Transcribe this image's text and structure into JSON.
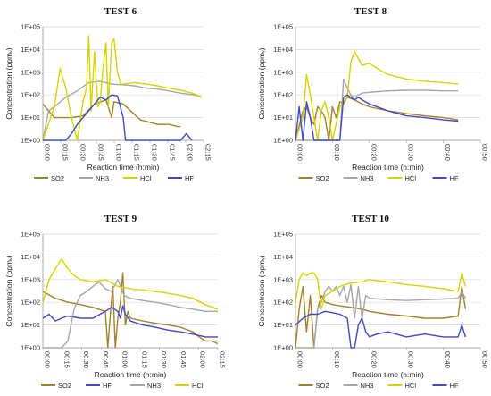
{
  "chart_data": [
    {
      "type": "line",
      "title": "TEST 6",
      "xlabel": "Reaction time (h:min)",
      "ylabel": "Concentration (ppmᵥ)",
      "y_scale": "log",
      "ylim": [
        1,
        100000
      ],
      "y_ticks": [
        "1E+00",
        "1E+01",
        "1E+02",
        "1E+03",
        "1E+04",
        "1E+05"
      ],
      "xlim_min": [
        0,
        140
      ],
      "x_ticks": [
        "00:00",
        "00:15",
        "00:30",
        "00:45",
        "01:00",
        "01:15",
        "01:30",
        "01:45",
        "02:00",
        "02:15"
      ],
      "legend": "bottom",
      "series": [
        {
          "name": "SO2",
          "color": "#a0822a",
          "x": [
            0,
            5,
            10,
            15,
            25,
            35,
            45,
            55,
            60,
            62,
            70,
            85,
            100,
            110,
            118,
            120
          ],
          "y": [
            40,
            20,
            10,
            10,
            10,
            12,
            40,
            60,
            10,
            50,
            40,
            8,
            5,
            5,
            4,
            4
          ]
        },
        {
          "name": "NH3",
          "color": "#a6a6a6",
          "x": [
            0,
            5,
            10,
            20,
            30,
            40,
            50,
            60,
            70,
            80,
            90,
            100,
            110,
            120,
            132,
            138
          ],
          "y": [
            1,
            20,
            30,
            80,
            150,
            350,
            400,
            300,
            280,
            250,
            200,
            180,
            150,
            120,
            100,
            80
          ]
        },
        {
          "name": "HCl",
          "color": "#d4d400",
          "x": [
            0,
            10,
            15,
            20,
            25,
            30,
            35,
            38,
            40,
            42,
            45,
            48,
            50,
            52,
            55,
            57,
            60,
            62,
            65,
            68,
            70,
            80,
            90,
            100,
            110,
            120,
            130,
            138
          ],
          "y": [
            1,
            30,
            1500,
            200,
            10,
            1,
            50,
            200,
            40000,
            20,
            8000,
            30,
            50,
            1000,
            20000,
            30,
            20000,
            30000,
            1000,
            300,
            300,
            350,
            300,
            250,
            200,
            160,
            120,
            80
          ]
        },
        {
          "name": "HF",
          "color": "#3f48cc",
          "x": [
            0,
            20,
            25,
            30,
            35,
            40,
            45,
            50,
            55,
            60,
            65,
            70,
            72,
            75,
            80,
            85,
            90,
            100,
            110,
            120,
            125,
            130
          ],
          "y": [
            1,
            1,
            2,
            5,
            10,
            20,
            40,
            80,
            60,
            100,
            90,
            10,
            1,
            1,
            1,
            1,
            1,
            1,
            1,
            1,
            2,
            1
          ]
        }
      ]
    },
    {
      "type": "line",
      "title": "TEST 8",
      "xlabel": "Reaction time (h:min)",
      "ylabel": "Concentration (ppmᵥ)",
      "y_scale": "log",
      "ylim": [
        1,
        100000
      ],
      "y_ticks": [
        "1E+00",
        "1E+01",
        "1E+02",
        "1E+03",
        "1E+04",
        "1E+05"
      ],
      "xlim_min": [
        0,
        50
      ],
      "x_ticks": [
        "00:00",
        "00:10",
        "00:20",
        "00:30",
        "00:40",
        "00:50"
      ],
      "legend": "bottom",
      "series": [
        {
          "name": "SO2",
          "color": "#a0822a",
          "x": [
            0,
            2,
            3,
            4,
            5,
            6,
            7,
            8,
            9,
            10,
            11,
            12,
            13,
            14,
            16,
            18,
            20,
            25,
            30,
            35,
            40,
            44
          ],
          "y": [
            1,
            20,
            30,
            10,
            5,
            30,
            20,
            10,
            1,
            30,
            10,
            50,
            40,
            80,
            60,
            40,
            30,
            20,
            15,
            12,
            10,
            8
          ]
        },
        {
          "name": "NH3",
          "color": "#a6a6a6",
          "x": [
            0,
            12,
            13,
            14,
            15,
            16,
            17,
            18,
            20,
            25,
            30,
            35,
            40,
            44
          ],
          "y": [
            1,
            1,
            500,
            200,
            100,
            80,
            100,
            120,
            130,
            150,
            160,
            160,
            150,
            150
          ]
        },
        {
          "name": "HCl",
          "color": "#d4d400",
          "x": [
            0,
            2,
            3,
            4,
            5,
            6,
            7,
            8,
            9,
            10,
            12,
            14,
            15,
            16,
            17,
            18,
            20,
            22,
            25,
            30,
            35,
            40,
            44
          ],
          "y": [
            1,
            10,
            800,
            100,
            10,
            1,
            20,
            50,
            10,
            1,
            30,
            80,
            3000,
            8000,
            4000,
            2000,
            2500,
            1500,
            800,
            500,
            400,
            350,
            300
          ]
        },
        {
          "name": "HF",
          "color": "#3f48cc",
          "x": [
            0,
            1,
            2,
            3,
            4,
            5,
            6,
            8,
            10,
            12,
            13,
            14,
            15,
            16,
            17,
            18,
            20,
            25,
            30,
            35,
            40,
            44
          ],
          "y": [
            1,
            30,
            1,
            50,
            10,
            1,
            1,
            1,
            1,
            1,
            80,
            100,
            80,
            60,
            80,
            60,
            40,
            20,
            12,
            10,
            8,
            7
          ]
        }
      ]
    },
    {
      "type": "line",
      "title": "TEST 9",
      "xlabel": "Reaction time (h:min)",
      "ylabel": "Concentration (ppmᵥ)",
      "y_scale": "log",
      "ylim": [
        1,
        100000
      ],
      "y_ticks": [
        "1E+00",
        "1E+01",
        "1E+02",
        "1E+03",
        "1E+04",
        "1E+05"
      ],
      "xlim_min": [
        0,
        140
      ],
      "x_ticks": [
        "00:00",
        "00:15",
        "00:30",
        "00:45",
        "01:00",
        "01:15",
        "01:30",
        "01:45",
        "02:00",
        "02:15"
      ],
      "legend": "bottom",
      "series": [
        {
          "name": "SO2",
          "color": "#a0822a",
          "x": [
            0,
            10,
            20,
            30,
            40,
            50,
            52,
            54,
            56,
            58,
            60,
            62,
            64,
            66,
            68,
            70,
            80,
            90,
            100,
            110,
            120,
            125,
            130,
            135,
            140
          ],
          "y": [
            300,
            150,
            100,
            80,
            60,
            40,
            1,
            30,
            500,
            1,
            20,
            100,
            2000,
            10,
            40,
            20,
            15,
            12,
            10,
            8,
            5,
            3,
            2,
            2,
            1.5
          ]
        },
        {
          "name": "HF",
          "color": "#3f48cc",
          "x": [
            0,
            5,
            10,
            15,
            20,
            30,
            40,
            50,
            55,
            60,
            62,
            64,
            66,
            70,
            80,
            90,
            100,
            110,
            120,
            130,
            140
          ],
          "y": [
            20,
            30,
            15,
            20,
            25,
            20,
            20,
            40,
            60,
            40,
            20,
            70,
            30,
            15,
            10,
            8,
            6,
            5,
            4,
            3,
            3
          ]
        },
        {
          "name": "NH3",
          "color": "#a6a6a6",
          "x": [
            0,
            15,
            20,
            25,
            30,
            35,
            40,
            45,
            50,
            55,
            60,
            65,
            70,
            80,
            90,
            100,
            110,
            120,
            130,
            140
          ],
          "y": [
            1,
            1,
            2,
            50,
            200,
            300,
            500,
            800,
            400,
            300,
            1000,
            200,
            150,
            120,
            100,
            80,
            60,
            50,
            40,
            40
          ]
        },
        {
          "name": "HCl",
          "color": "#d4d400",
          "x": [
            0,
            5,
            10,
            15,
            20,
            25,
            30,
            40,
            50,
            60,
            70,
            80,
            90,
            100,
            110,
            120,
            130,
            140
          ],
          "y": [
            100,
            1000,
            3000,
            8000,
            3000,
            1500,
            1000,
            800,
            1000,
            500,
            400,
            350,
            300,
            250,
            200,
            150,
            80,
            50
          ]
        }
      ]
    },
    {
      "type": "line",
      "title": "TEST 10",
      "xlabel": "Reaction time (h:min)",
      "ylabel": "Concentration (ppmᵥ)",
      "y_scale": "log",
      "ylim": [
        1,
        100000
      ],
      "y_ticks": [
        "1E+00",
        "1E+01",
        "1E+02",
        "1E+03",
        "1E+04",
        "1E+05"
      ],
      "xlim_min": [
        0,
        50
      ],
      "x_ticks": [
        "00:00",
        "00:10",
        "00:20",
        "00:30",
        "00:40",
        "00:50"
      ],
      "legend": "bottom",
      "series": [
        {
          "name": "SO2",
          "color": "#a0822a",
          "x": [
            0,
            1,
            2,
            3,
            4,
            5,
            6,
            7,
            8,
            10,
            12,
            15,
            18,
            20,
            25,
            30,
            35,
            40,
            44,
            45,
            46
          ],
          "y": [
            1,
            50,
            500,
            5,
            200,
            1,
            50,
            200,
            100,
            80,
            70,
            60,
            50,
            40,
            30,
            25,
            20,
            20,
            25,
            500,
            50
          ]
        },
        {
          "name": "NH3",
          "color": "#a6a6a6",
          "x": [
            0,
            5,
            6,
            7,
            8,
            9,
            10,
            11,
            12,
            13,
            14,
            15,
            16,
            17,
            18,
            19,
            20,
            25,
            30,
            35,
            40,
            44,
            45,
            46
          ],
          "y": [
            1,
            1,
            50,
            100,
            300,
            500,
            300,
            500,
            200,
            500,
            100,
            600,
            20,
            500,
            20,
            200,
            150,
            130,
            120,
            130,
            140,
            150,
            300,
            150
          ]
        },
        {
          "name": "HCl",
          "color": "#d4d400",
          "x": [
            0,
            1,
            2,
            3,
            4,
            5,
            6,
            7,
            8,
            10,
            12,
            15,
            18,
            20,
            22,
            25,
            30,
            35,
            40,
            44,
            45,
            46
          ],
          "y": [
            100,
            1000,
            2000,
            1500,
            2000,
            2000,
            1000,
            50,
            200,
            300,
            500,
            700,
            800,
            1000,
            900,
            800,
            600,
            500,
            400,
            300,
            2000,
            500
          ]
        },
        {
          "name": "HF",
          "color": "#3f48cc",
          "x": [
            0,
            2,
            4,
            6,
            8,
            10,
            12,
            14,
            15,
            16,
            17,
            18,
            19,
            20,
            22,
            25,
            30,
            35,
            40,
            44,
            45,
            46
          ],
          "y": [
            10,
            20,
            30,
            30,
            40,
            35,
            30,
            20,
            1,
            1,
            10,
            20,
            5,
            3,
            4,
            5,
            3,
            4,
            3,
            3,
            10,
            3
          ]
        }
      ]
    }
  ]
}
